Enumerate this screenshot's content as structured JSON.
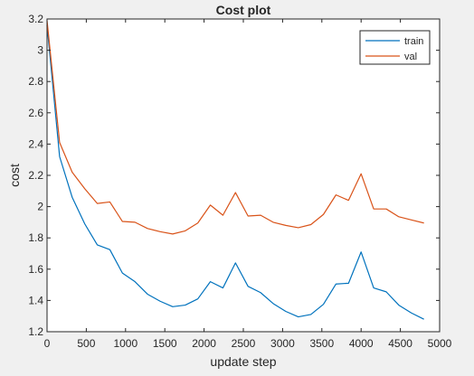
{
  "chart_data": {
    "type": "line",
    "title": "Cost plot",
    "xlabel": "update step",
    "ylabel": "cost",
    "xlim": [
      0,
      5000
    ],
    "ylim": [
      1.2,
      3.2
    ],
    "xticks": [
      0,
      500,
      1000,
      1500,
      2000,
      2500,
      3000,
      3500,
      4000,
      4500,
      5000
    ],
    "yticks": [
      1.2,
      1.4,
      1.6,
      1.8,
      2,
      2.2,
      2.4,
      2.6,
      2.8,
      3,
      3.2
    ],
    "grid": false,
    "legend_position": "top-right",
    "x": [
      0,
      160,
      320,
      480,
      640,
      800,
      960,
      1120,
      1280,
      1440,
      1600,
      1760,
      1920,
      2080,
      2240,
      2400,
      2560,
      2720,
      2880,
      3040,
      3200,
      3360,
      3520,
      3680,
      3840,
      4000,
      4160,
      4320,
      4480,
      4640,
      4800
    ],
    "series": [
      {
        "name": "train",
        "color": "#0072BD",
        "values": [
          3.16,
          2.32,
          2.06,
          1.89,
          1.755,
          1.725,
          1.575,
          1.52,
          1.44,
          1.395,
          1.36,
          1.37,
          1.41,
          1.52,
          1.48,
          1.64,
          1.49,
          1.45,
          1.38,
          1.33,
          1.295,
          1.31,
          1.375,
          1.505,
          1.51,
          1.71,
          1.48,
          1.455,
          1.37,
          1.32,
          1.28
        ]
      },
      {
        "name": "val",
        "color": "#D95319",
        "values": [
          3.19,
          2.41,
          2.22,
          2.115,
          2.02,
          2.03,
          1.905,
          1.9,
          1.86,
          1.84,
          1.825,
          1.845,
          1.895,
          2.01,
          1.945,
          2.09,
          1.94,
          1.945,
          1.9,
          1.88,
          1.865,
          1.885,
          1.95,
          2.075,
          2.04,
          2.21,
          1.985,
          1.985,
          1.935,
          1.915,
          1.895
        ]
      }
    ]
  }
}
